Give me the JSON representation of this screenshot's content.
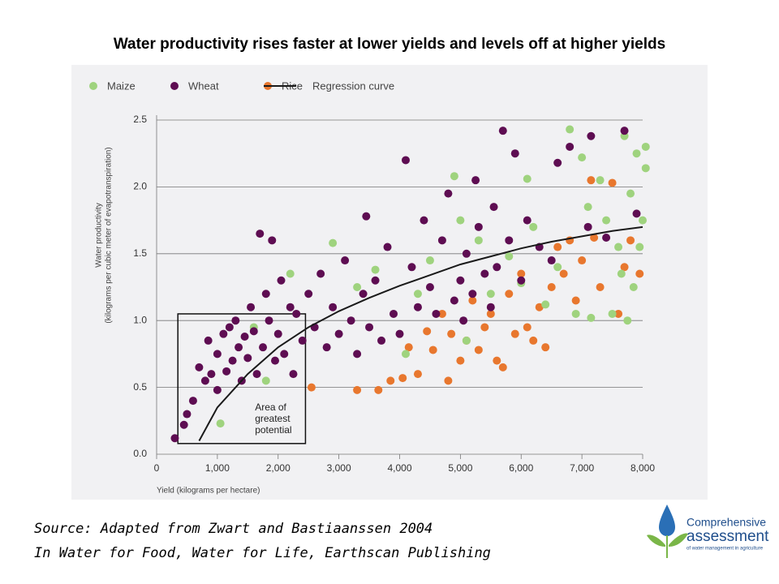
{
  "title": "Water productivity rises faster at lower yields and levels off at higher yields",
  "chart_data": {
    "type": "scatter",
    "xlabel": "Yield (kilograms per hectare)",
    "ylabel": [
      "Water productivity",
      "(kilograms per cubic meter of evapotranspiration)"
    ],
    "xlim": [
      0,
      8000
    ],
    "ylim": [
      0,
      2.5
    ],
    "xticks": [
      0,
      {
        "value": 1000,
        "label": "1,000"
      },
      {
        "value": 2000,
        "label": "2,000"
      },
      {
        "value": 3000,
        "label": "3,000"
      },
      {
        "value": 4000,
        "label": "4,000"
      },
      {
        "value": 5000,
        "label": "5,000"
      },
      {
        "value": 6000,
        "label": "6,000"
      },
      {
        "value": 7000,
        "label": "7,000"
      },
      {
        "value": 8000,
        "label": "8,000"
      }
    ],
    "yticks": [
      {
        "value": 0,
        "label": "0.0"
      },
      {
        "value": 0.5,
        "label": "0.5"
      },
      {
        "value": 1,
        "label": "1.0"
      },
      {
        "value": 1.5,
        "label": "1.5"
      },
      {
        "value": 2,
        "label": "2.0"
      },
      {
        "value": 2.5,
        "label": "2.5"
      }
    ],
    "grid": true,
    "series": [
      {
        "name": "Maize",
        "color": "#9fd37e",
        "x": [
          1050,
          1600,
          1800,
          2200,
          2900,
          3300,
          3600,
          4100,
          4300,
          4500,
          4900,
          5000,
          5100,
          5300,
          5500,
          5800,
          6000,
          6100,
          6200,
          6400,
          6600,
          6800,
          6900,
          7000,
          7100,
          7150,
          7300,
          7400,
          7500,
          7600,
          7650,
          7700,
          7750,
          7800,
          7850,
          7900,
          7950,
          8050,
          8000,
          8050
        ],
        "values": [
          0.23,
          0.95,
          0.55,
          1.35,
          1.58,
          1.25,
          1.38,
          0.75,
          1.2,
          1.45,
          2.08,
          1.75,
          0.85,
          1.6,
          1.2,
          1.48,
          1.28,
          2.06,
          1.7,
          1.12,
          1.4,
          2.43,
          1.05,
          2.22,
          1.85,
          1.02,
          2.05,
          1.75,
          1.05,
          1.55,
          1.35,
          2.38,
          1.0,
          1.95,
          1.25,
          2.25,
          1.55,
          2.3,
          1.75,
          2.14
        ]
      },
      {
        "name": "Wheat",
        "color": "#5e0d52",
        "x": [
          300,
          450,
          500,
          600,
          700,
          800,
          850,
          900,
          1000,
          1000,
          1100,
          1150,
          1200,
          1250,
          1300,
          1350,
          1400,
          1450,
          1500,
          1550,
          1600,
          1650,
          1700,
          1750,
          1800,
          1850,
          1900,
          1950,
          2000,
          2050,
          2100,
          2200,
          2250,
          2300,
          2400,
          2500,
          2600,
          2700,
          2800,
          2900,
          3000,
          3100,
          3200,
          3300,
          3400,
          3450,
          3500,
          3600,
          3700,
          3800,
          3900,
          4000,
          4100,
          4200,
          4300,
          4400,
          4500,
          4600,
          4700,
          4800,
          4900,
          5000,
          5050,
          5100,
          5200,
          5250,
          5300,
          5400,
          5500,
          5550,
          5600,
          5700,
          5800,
          5900,
          6000,
          6100,
          6300,
          6500,
          6600,
          6800,
          7100,
          7150,
          7400,
          7700,
          7900
        ],
        "values": [
          0.12,
          0.22,
          0.3,
          0.4,
          0.65,
          0.55,
          0.85,
          0.6,
          0.48,
          0.75,
          0.9,
          0.62,
          0.95,
          0.7,
          1.0,
          0.8,
          0.55,
          0.88,
          0.72,
          1.1,
          0.92,
          0.6,
          1.65,
          0.8,
          1.2,
          1.0,
          1.6,
          0.7,
          0.9,
          1.3,
          0.75,
          1.1,
          0.6,
          1.05,
          0.85,
          1.2,
          0.95,
          1.35,
          0.8,
          1.1,
          0.9,
          1.45,
          1.0,
          0.75,
          1.2,
          1.78,
          0.95,
          1.3,
          0.85,
          1.55,
          1.05,
          0.9,
          2.2,
          1.4,
          1.1,
          1.75,
          1.25,
          1.05,
          1.6,
          1.95,
          1.15,
          1.3,
          1.0,
          1.5,
          1.2,
          2.05,
          1.7,
          1.35,
          1.1,
          1.85,
          1.4,
          2.42,
          1.6,
          2.25,
          1.3,
          1.75,
          1.55,
          1.45,
          2.18,
          2.3,
          1.7,
          2.38,
          1.62,
          2.42,
          1.8
        ]
      },
      {
        "name": "Rice",
        "color": "#e8772e",
        "x": [
          2550,
          3300,
          3650,
          3850,
          4050,
          4150,
          4300,
          4450,
          4550,
          4700,
          4800,
          4850,
          5000,
          5100,
          5200,
          5300,
          5400,
          5500,
          5600,
          5700,
          5800,
          5900,
          6000,
          6100,
          6200,
          6300,
          6400,
          6500,
          6600,
          6700,
          6800,
          6900,
          7000,
          7150,
          7200,
          7300,
          7500,
          7600,
          7700,
          7800,
          7950
        ],
        "values": [
          0.5,
          0.48,
          0.48,
          0.55,
          0.57,
          0.8,
          0.6,
          0.92,
          0.78,
          1.05,
          0.55,
          0.9,
          0.7,
          0.85,
          1.15,
          0.78,
          0.95,
          1.05,
          0.7,
          0.65,
          1.2,
          0.9,
          1.35,
          0.95,
          0.85,
          1.1,
          0.8,
          1.25,
          1.55,
          1.35,
          1.6,
          1.15,
          1.45,
          2.05,
          1.62,
          1.25,
          2.03,
          1.05,
          1.4,
          1.6,
          1.35
        ]
      },
      {
        "name": "Regression curve",
        "color": "#1a1a1a",
        "type": "line",
        "x": [
          700,
          1000,
          1500,
          2000,
          2500,
          3000,
          3500,
          4000,
          4500,
          5000,
          5500,
          6000,
          6500,
          7000,
          7500,
          8000
        ],
        "values": [
          0.1,
          0.35,
          0.6,
          0.8,
          0.95,
          1.07,
          1.17,
          1.26,
          1.34,
          1.42,
          1.48,
          1.54,
          1.59,
          1.63,
          1.67,
          1.7
        ]
      }
    ],
    "box": {
      "x": [
        350,
        2450
      ],
      "y": [
        0.08,
        1.05
      ],
      "label": [
        "Area of",
        "greatest",
        "potential"
      ]
    }
  },
  "source": [
    "Source: Adapted from Zwart and Bastiaanssen 2004",
    "In Water for Food, Water for Life, Earthscan Publishing"
  ],
  "logo": [
    "Comprehensive",
    "assessment",
    "of water management in agriculture"
  ]
}
